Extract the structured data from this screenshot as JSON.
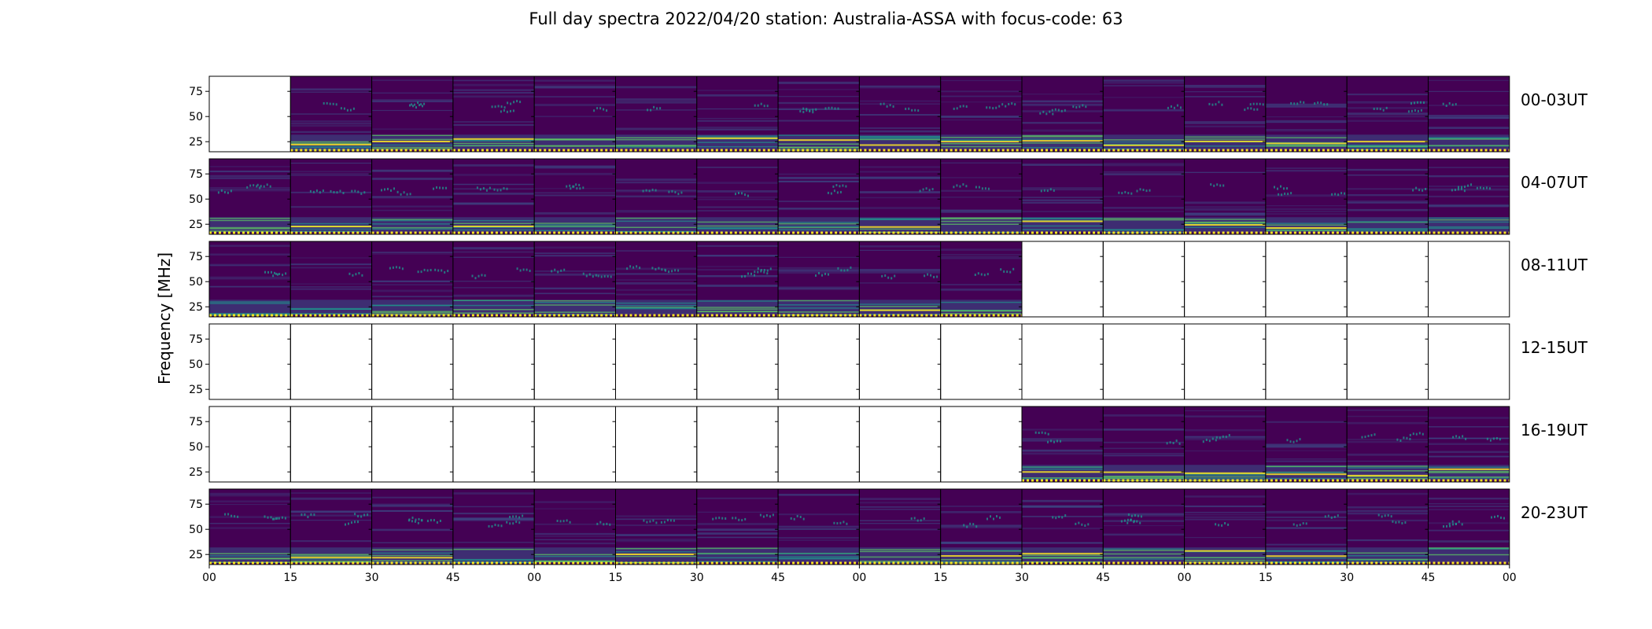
{
  "chart_data": {
    "type": "heatmap",
    "title": "Full day spectra 2022/04/20 station: Australia-ASSA with focus-code: 63",
    "xlabel": "",
    "ylabel": "Frequency [MHz]",
    "ylim": [
      15,
      90
    ],
    "y_ticks": [
      "75",
      "50",
      "25"
    ],
    "x_tick_labels": [
      "00",
      "15",
      "30",
      "45",
      "00",
      "15",
      "30",
      "45",
      "00",
      "15",
      "30",
      "45",
      "00",
      "15",
      "30",
      "45",
      "00"
    ],
    "colormap": "viridis",
    "rows": [
      {
        "label": "00-03UT",
        "panels": [
          0,
          1,
          1,
          1,
          1,
          1,
          1,
          1,
          1,
          1,
          1,
          1,
          1,
          1,
          1,
          1
        ]
      },
      {
        "label": "04-07UT",
        "panels": [
          1,
          1,
          1,
          1,
          1,
          1,
          1,
          1,
          1,
          1,
          1,
          1,
          1,
          1,
          1,
          1
        ]
      },
      {
        "label": "08-11UT",
        "panels": [
          1,
          1,
          1,
          1,
          1,
          1,
          1,
          1,
          1,
          1,
          0,
          0,
          0,
          0,
          0,
          0
        ]
      },
      {
        "label": "12-15UT",
        "panels": [
          0,
          0,
          0,
          0,
          0,
          0,
          0,
          0,
          0,
          0,
          0,
          0,
          0,
          0,
          0,
          0
        ]
      },
      {
        "label": "16-19UT",
        "panels": [
          0,
          0,
          0,
          0,
          0,
          0,
          0,
          0,
          0,
          0,
          1,
          1,
          1,
          1,
          1,
          1
        ]
      },
      {
        "label": "20-23UT",
        "panels": [
          1,
          1,
          1,
          1,
          1,
          1,
          1,
          1,
          1,
          1,
          1,
          1,
          1,
          1,
          1,
          1
        ]
      }
    ]
  },
  "colors": {
    "background": "#440154",
    "mid": "#3b528b",
    "teal": "#21918c",
    "green": "#5ec962",
    "yellow": "#fde725"
  }
}
